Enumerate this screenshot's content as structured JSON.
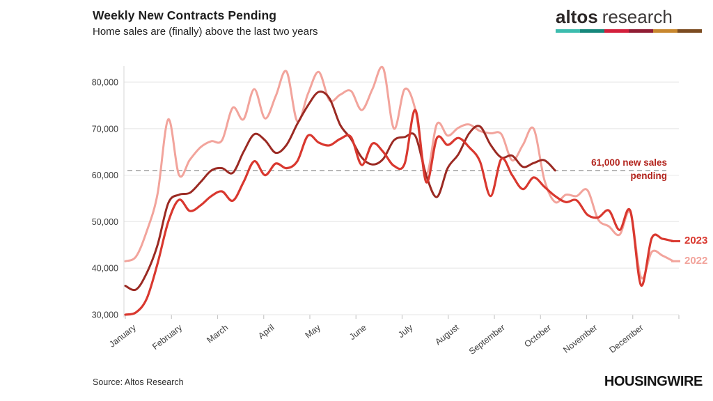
{
  "header": {
    "title": "Weekly New Contracts Pending",
    "subtitle": "Home sales are (finally) above the last two years"
  },
  "logo": {
    "brand_bold": "altos",
    "brand_light": "research",
    "bar_colors": [
      "#3cbcae",
      "#16877b",
      "#d31f3b",
      "#901c33",
      "#c8872e",
      "#7b4b20"
    ]
  },
  "footer": {
    "source": "Source: Altos Research",
    "publisher": "HOUSINGWIRE"
  },
  "chart_data": {
    "type": "line",
    "title": "Weekly New Contracts Pending",
    "subtitle": "Home sales are (finally) above the last two years",
    "x_unit": "week of year (weekly data)",
    "x_axis": {
      "tick_labels": [
        "January",
        "February",
        "March",
        "April",
        "May",
        "June",
        "July",
        "August",
        "September",
        "October",
        "November",
        "December"
      ]
    },
    "y_axis": {
      "tick_values": [
        30000,
        40000,
        50000,
        60000,
        70000,
        80000
      ],
      "tick_labels": [
        "30,000",
        "40,000",
        "50,000",
        "60,000",
        "70,000",
        "80,000"
      ],
      "ylim": [
        30000,
        83500
      ]
    },
    "grid": "horizontal",
    "legend": "end-of-line labels",
    "reference_line": {
      "value": 61000,
      "style": "dashed",
      "color": "#a9a9a9",
      "annotation_line1": "61,000 new sales",
      "annotation_line2": "pending",
      "annotation_color": "#b3251e"
    },
    "series": [
      {
        "id": "2022",
        "end_label": "2022",
        "color": "#f2a49c",
        "stroke_width": 3,
        "values": [
          41500,
          42500,
          48000,
          56000,
          72000,
          60000,
          63300,
          66000,
          67300,
          67500,
          74500,
          72000,
          78500,
          72200,
          77000,
          82300,
          71600,
          77500,
          82200,
          76100,
          77300,
          78100,
          74000,
          78500,
          83000,
          70000,
          78500,
          74000,
          60300,
          71000,
          68500,
          70200,
          70900,
          69500,
          69000,
          68800,
          63200,
          66500,
          70000,
          59000,
          54200,
          55800,
          55500,
          56800,
          50500,
          49000,
          47200,
          52000,
          38000,
          43500,
          42700,
          41500
        ]
      },
      {
        "id": "current-year",
        "end_label": "",
        "color": "#9b2a23",
        "stroke_width": 3,
        "values": [
          36200,
          35400,
          39000,
          45000,
          54000,
          55800,
          56200,
          58500,
          61000,
          61500,
          60500,
          65000,
          68800,
          67500,
          64800,
          66500,
          71000,
          75000,
          77900,
          76500,
          70800,
          67800,
          63800,
          62300,
          63500,
          67500,
          68200,
          68400,
          60000,
          55300,
          61500,
          64500,
          69000,
          70500,
          66500,
          63800,
          64200,
          61800,
          62600,
          63200,
          61000
        ]
      },
      {
        "id": "2023",
        "end_label": "2023",
        "color": "#d9382f",
        "stroke_width": 3.2,
        "values": [
          30000,
          30500,
          33500,
          41000,
          50000,
          54700,
          52300,
          53500,
          55500,
          56500,
          54500,
          58500,
          63000,
          60000,
          62500,
          61500,
          63000,
          68500,
          67000,
          66400,
          67800,
          68200,
          62200,
          66800,
          65000,
          62000,
          62500,
          74000,
          58500,
          68000,
          66500,
          68000,
          66000,
          63000,
          55500,
          63500,
          60000,
          57000,
          59500,
          57500,
          55500,
          54200,
          54600,
          51500,
          50900,
          52400,
          48200,
          52300,
          36300,
          46500,
          46300,
          45800
        ]
      }
    ]
  }
}
